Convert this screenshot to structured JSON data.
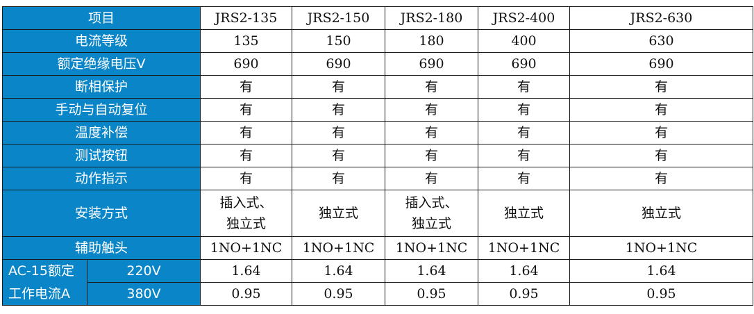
{
  "header": {
    "label": "项目",
    "models": [
      "JRS2-135",
      "JRS2-150",
      "JRS2-180",
      "JRS2-400",
      "JRS2-630"
    ]
  },
  "rows": [
    {
      "label": "电流等级",
      "values": [
        "135",
        "150",
        "180",
        "400",
        "630"
      ]
    },
    {
      "label": "额定绝缘电压V",
      "values": [
        "690",
        "690",
        "690",
        "690",
        "690"
      ]
    },
    {
      "label": "断相保护",
      "values": [
        "有",
        "有",
        "有",
        "有",
        "有"
      ]
    },
    {
      "label": "手动与自动复位",
      "values": [
        "有",
        "有",
        "有",
        "有",
        "有"
      ]
    },
    {
      "label": "温度补偿",
      "values": [
        "有",
        "有",
        "有",
        "有",
        "有"
      ]
    },
    {
      "label": "测试按钮",
      "values": [
        "有",
        "有",
        "有",
        "有",
        "有"
      ]
    },
    {
      "label": "动作指示",
      "values": [
        "有",
        "有",
        "有",
        "有",
        "有"
      ]
    },
    {
      "label": "安装方式",
      "values": [
        "插入式、独立式",
        "独立式",
        "插入式、独立式",
        "独立式",
        "独立式"
      ]
    },
    {
      "label": "辅助触头",
      "values": [
        "1NO+1NC",
        "1NO+1NC",
        "1NO+1NC",
        "1NO+1NC",
        "1NO+1NC"
      ]
    }
  ],
  "ac15": {
    "label_line1": "AC-15额定",
    "label_line2": "工作电流A",
    "sub": [
      {
        "voltage": "220V",
        "values": [
          "1.64",
          "1.64",
          "1.64",
          "1.64",
          "1.64"
        ]
      },
      {
        "voltage": "380V",
        "values": [
          "0.95",
          "0.95",
          "0.95",
          "0.95",
          "0.95"
        ]
      }
    ]
  },
  "colors": {
    "header_bg": "#0a85c8"
  }
}
